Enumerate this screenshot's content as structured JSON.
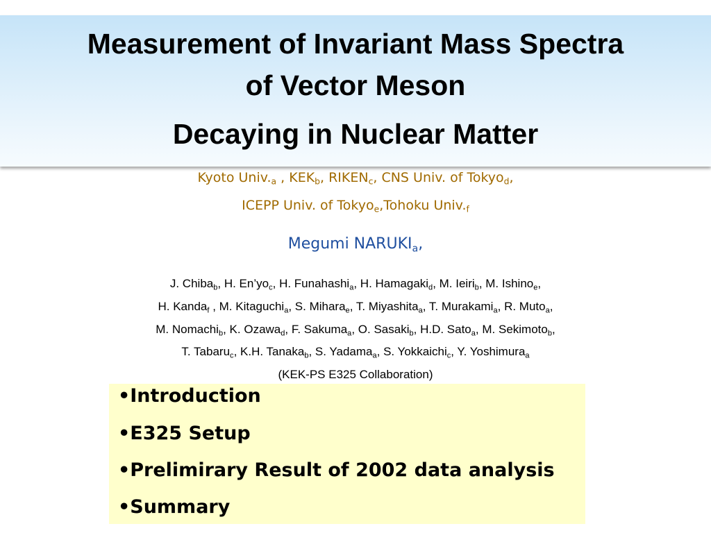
{
  "title": [
    "Measurement of Invariant Mass Spectra",
    "of Vector Meson",
    "Decaying in Nuclear Matter"
  ],
  "institutions": [
    [
      {
        "text": "Kyoto Univ.",
        "sub": "a"
      },
      {
        "text": " , KEK",
        "sub": "b"
      },
      {
        "text": ", RIKEN",
        "sub": "c"
      },
      {
        "text": ", CNS Univ. of Tokyo",
        "sub": "d"
      },
      {
        "text": ","
      }
    ],
    [
      {
        "text": "ICEPP Univ. of Tokyo",
        "sub": "e"
      },
      {
        "text": ",Tohoku Univ.",
        "sub": "f"
      }
    ]
  ],
  "speaker": [
    {
      "text": "Megumi NARUKI",
      "sub": "a"
    },
    {
      "text": ","
    }
  ],
  "authors": [
    [
      {
        "text": "J. Chiba",
        "sub": "b"
      },
      {
        "text": ", H. En’yo",
        "sub": "c"
      },
      {
        "text": ", H. Funahashi",
        "sub": "a"
      },
      {
        "text": ", H. Hamagaki",
        "sub": "d"
      },
      {
        "text": ", M. Ieiri",
        "sub": "b"
      },
      {
        "text": ", M. Ishino",
        "sub": "e"
      },
      {
        "text": ","
      }
    ],
    [
      {
        "text": "H. Kanda",
        "sub": "f"
      },
      {
        "text": " , M. Kitaguchi",
        "sub": "a"
      },
      {
        "text": ", S. Mihara",
        "sub": "e"
      },
      {
        "text": ", T. Miyashita",
        "sub": "a"
      },
      {
        "text": ", T. Murakami",
        "sub": "a"
      },
      {
        "text": ", R. Muto",
        "sub": "a"
      },
      {
        "text": ","
      }
    ],
    [
      {
        "text": "M. Nomachi",
        "sub": "b"
      },
      {
        "text": ", K. Ozawa",
        "sub": "d"
      },
      {
        "text": ", F. Sakuma",
        "sub": "a"
      },
      {
        "text": ", O. Sasaki",
        "sub": "b"
      },
      {
        "text": ", H.D. Sato",
        "sub": "a"
      },
      {
        "text": ", M. Sekimoto",
        "sub": "b"
      },
      {
        "text": ","
      }
    ],
    [
      {
        "text": "T. Tabaru",
        "sub": "c"
      },
      {
        "text": ", K.H. Tanaka",
        "sub": "b"
      },
      {
        "text": ", S. Yadama",
        "sub": "a"
      },
      {
        "text": ", S. Yokkaichi",
        "sub": "c"
      },
      {
        "text": ", Y. Yoshimura",
        "sub": "a"
      }
    ]
  ],
  "collaboration": "(KEK-PS E325 Collaboration)",
  "outline": [
    "•Introduction",
    "•E325 Setup",
    "•Prelimirary Result of 2002 data analysis",
    "•Summary"
  ]
}
